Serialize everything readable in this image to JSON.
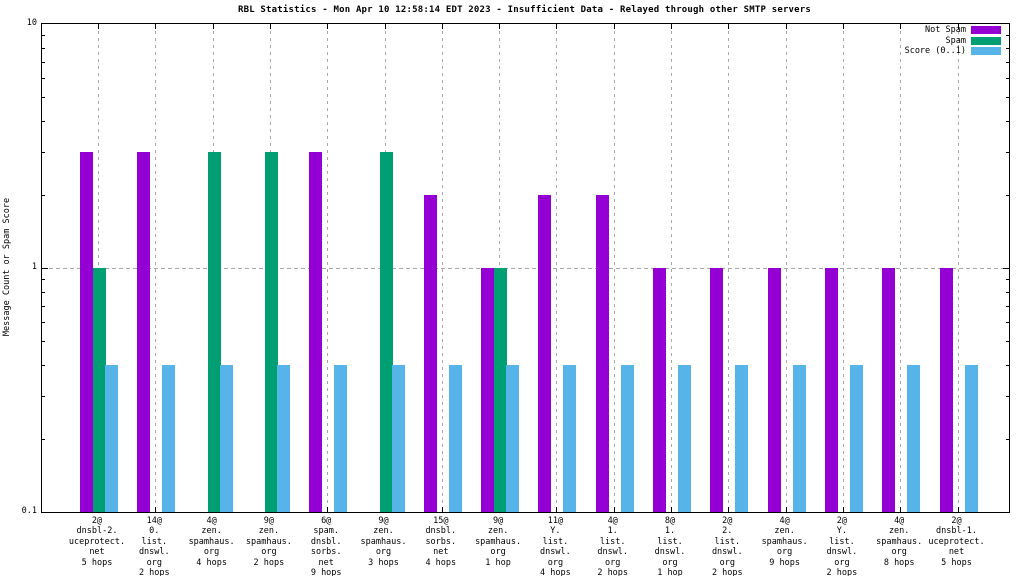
{
  "chart_data": {
    "type": "bar",
    "title": "RBL Statistics - Mon Apr 10 12:58:14 EDT 2023 - Insufficient Data - Relayed through other SMTP servers",
    "ylabel": "Message Count or Spam Score",
    "yscale": "log",
    "ylim": [
      0.1,
      10
    ],
    "ytick_labels": [
      "10",
      "1",
      "0.1"
    ],
    "ytick_values": [
      10,
      1,
      0.1
    ],
    "grid": true,
    "legend_position": "top-right",
    "series": [
      {
        "key": "not_spam",
        "name": "Not Spam",
        "color": "#9400d3"
      },
      {
        "key": "spam",
        "name": "Spam",
        "color": "#009e73"
      },
      {
        "key": "score",
        "name": "Score (0..1)",
        "color": "#56b4e9"
      }
    ],
    "groups": [
      {
        "label_lines": [
          "2@",
          "dnsbl-2.",
          "uceprotect.",
          "net",
          "5 hops"
        ],
        "not_spam": 3,
        "spam": 1,
        "score": 0.4
      },
      {
        "label_lines": [
          "14@",
          "0.",
          "list.",
          "dnswl.",
          "org",
          "2 hops"
        ],
        "not_spam": 3,
        "spam": null,
        "score": 0.4
      },
      {
        "label_lines": [
          "4@",
          "zen.",
          "spamhaus.",
          "org",
          "4 hops"
        ],
        "not_spam": null,
        "spam": 3,
        "score": 0.4
      },
      {
        "label_lines": [
          "9@",
          "zen.",
          "spamhaus.",
          "org",
          "2 hops"
        ],
        "not_spam": null,
        "spam": 3,
        "score": 0.4
      },
      {
        "label_lines": [
          "6@",
          "spam.",
          "dnsbl.",
          "sorbs.",
          "net",
          "9 hops"
        ],
        "not_spam": 3,
        "spam": null,
        "score": 0.4
      },
      {
        "label_lines": [
          "9@",
          "zen.",
          "spamhaus.",
          "org",
          "3 hops"
        ],
        "not_spam": null,
        "spam": 3,
        "score": 0.4
      },
      {
        "label_lines": [
          "15@",
          "dnsbl.",
          "sorbs.",
          "net",
          "4 hops"
        ],
        "not_spam": 2,
        "spam": null,
        "score": 0.4
      },
      {
        "label_lines": [
          "9@",
          "zen.",
          "spamhaus.",
          "org",
          "1 hop"
        ],
        "not_spam": 1,
        "spam": 1,
        "score": 0.4
      },
      {
        "label_lines": [
          "11@",
          "Y.",
          "list.",
          "dnswl.",
          "org",
          "4 hops"
        ],
        "not_spam": 2,
        "spam": null,
        "score": 0.4
      },
      {
        "label_lines": [
          "4@",
          "1.",
          "list.",
          "dnswl.",
          "org",
          "2 hops"
        ],
        "not_spam": 2,
        "spam": null,
        "score": 0.4
      },
      {
        "label_lines": [
          "8@",
          "1.",
          "list.",
          "dnswl.",
          "org",
          "1 hop"
        ],
        "not_spam": 1,
        "spam": null,
        "score": 0.4
      },
      {
        "label_lines": [
          "2@",
          "2.",
          "list.",
          "dnswl.",
          "org",
          "2 hops"
        ],
        "not_spam": 1,
        "spam": null,
        "score": 0.4
      },
      {
        "label_lines": [
          "4@",
          "zen.",
          "spamhaus.",
          "org",
          "9 hops"
        ],
        "not_spam": 1,
        "spam": null,
        "score": 0.4
      },
      {
        "label_lines": [
          "2@",
          "Y.",
          "list.",
          "dnswl.",
          "org",
          "2 hops"
        ],
        "not_spam": 1,
        "spam": null,
        "score": 0.4
      },
      {
        "label_lines": [
          "4@",
          "zen.",
          "spamhaus.",
          "org",
          "8 hops"
        ],
        "not_spam": 1,
        "spam": null,
        "score": 0.4
      },
      {
        "label_lines": [
          "2@",
          "dnsbl-1.",
          "uceprotect.",
          "net",
          "5 hops"
        ],
        "not_spam": 1,
        "spam": null,
        "score": 0.4
      }
    ]
  },
  "colors": {
    "not_spam": "#9400d3",
    "spam": "#009e73",
    "score": "#56b4e9",
    "grid": "#a8a8a8",
    "axis": "#000000",
    "background": "#ffffff"
  },
  "legend": {
    "items": [
      {
        "label": "Not Spam",
        "series": "not_spam"
      },
      {
        "label": "Spam",
        "series": "spam"
      },
      {
        "label": "Score (0..1)",
        "series": "score"
      }
    ]
  }
}
